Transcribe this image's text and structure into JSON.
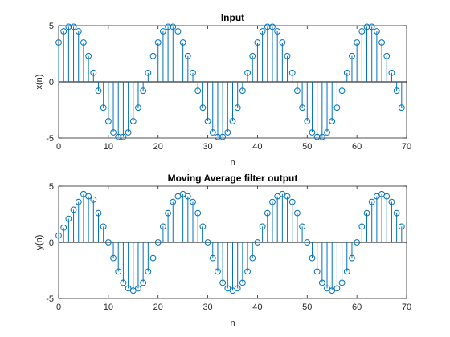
{
  "chart_data": [
    {
      "type": "stem",
      "title": "Input",
      "xlabel": "n",
      "ylabel": "x(n)",
      "xlim": [
        0,
        70
      ],
      "ylim": [
        -5,
        5
      ],
      "xticks": [
        0,
        10,
        20,
        30,
        40,
        50,
        60,
        70
      ],
      "yticks": [
        -5,
        0,
        5
      ],
      "baseline": 0,
      "color": "#0072BD",
      "baseline_color": "#000000",
      "x": [
        0,
        1,
        2,
        3,
        4,
        5,
        6,
        7,
        8,
        9,
        10,
        11,
        12,
        13,
        14,
        15,
        16,
        17,
        18,
        19,
        20,
        21,
        22,
        23,
        24,
        25,
        26,
        27,
        28,
        29,
        30,
        31,
        32,
        33,
        34,
        35,
        36,
        37,
        38,
        39,
        40,
        41,
        42,
        43,
        44,
        45,
        46,
        47,
        48,
        49,
        50,
        51,
        52,
        53,
        54,
        55,
        56,
        57,
        58,
        59,
        60,
        61,
        62,
        63,
        64,
        65,
        66,
        67,
        68,
        69
      ],
      "values": [
        3.5,
        4.5,
        4.9,
        4.9,
        4.5,
        3.5,
        2.3,
        0.8,
        -0.8,
        -2.3,
        -3.5,
        -4.5,
        -4.9,
        -4.9,
        -4.5,
        -3.5,
        -2.3,
        -0.8,
        0.8,
        2.3,
        3.5,
        4.5,
        4.9,
        4.9,
        4.5,
        3.5,
        2.3,
        0.8,
        -0.8,
        -2.3,
        -3.5,
        -4.5,
        -4.9,
        -4.9,
        -4.5,
        -3.5,
        -2.3,
        -0.8,
        0.8,
        2.3,
        3.5,
        4.5,
        4.9,
        4.9,
        4.5,
        3.5,
        2.3,
        0.8,
        -0.8,
        -2.3,
        -3.5,
        -4.5,
        -4.9,
        -4.9,
        -4.5,
        -3.5,
        -2.3,
        -0.8,
        0.8,
        2.3,
        3.5,
        4.5,
        4.9,
        4.9,
        4.5,
        3.5,
        2.3,
        0.8,
        -0.8,
        -2.3
      ]
    },
    {
      "type": "stem",
      "title": "Moving Average filter output",
      "xlabel": "n",
      "ylabel": "y(n)",
      "xlim": [
        0,
        70
      ],
      "ylim": [
        -5,
        5
      ],
      "xticks": [
        0,
        10,
        20,
        30,
        40,
        50,
        60,
        70
      ],
      "yticks": [
        -5,
        0,
        5
      ],
      "baseline": 0,
      "color": "#0072BD",
      "baseline_color": "#000000",
      "x": [
        0,
        1,
        2,
        3,
        4,
        5,
        6,
        7,
        8,
        9,
        10,
        11,
        12,
        13,
        14,
        15,
        16,
        17,
        18,
        19,
        20,
        21,
        22,
        23,
        24,
        25,
        26,
        27,
        28,
        29,
        30,
        31,
        32,
        33,
        34,
        35,
        36,
        37,
        38,
        39,
        40,
        41,
        42,
        43,
        44,
        45,
        46,
        47,
        48,
        49,
        50,
        51,
        52,
        53,
        54,
        55,
        56,
        57,
        58,
        59,
        60,
        61,
        62,
        63,
        64,
        65,
        66,
        67,
        68,
        69
      ],
      "values": [
        0.6,
        1.3,
        2.1,
        2.9,
        3.6,
        4.3,
        4.1,
        3.8,
        2.6,
        1.4,
        0,
        -1.4,
        -2.6,
        -3.6,
        -4.1,
        -4.3,
        -4.1,
        -3.6,
        -2.6,
        -1.4,
        0,
        1.4,
        2.6,
        3.6,
        4.1,
        4.3,
        4.1,
        3.6,
        2.6,
        1.4,
        0,
        -1.4,
        -2.6,
        -3.6,
        -4.1,
        -4.3,
        -4.1,
        -3.6,
        -2.6,
        -1.4,
        0,
        1.4,
        2.6,
        3.6,
        4.1,
        4.3,
        4.1,
        3.6,
        2.6,
        1.4,
        0,
        -1.4,
        -2.6,
        -3.6,
        -4.1,
        -4.3,
        -4.1,
        -3.6,
        -2.6,
        -1.4,
        0,
        1.4,
        2.6,
        3.6,
        4.1,
        4.3,
        4.1,
        3.6,
        2.6,
        1.4
      ]
    }
  ]
}
